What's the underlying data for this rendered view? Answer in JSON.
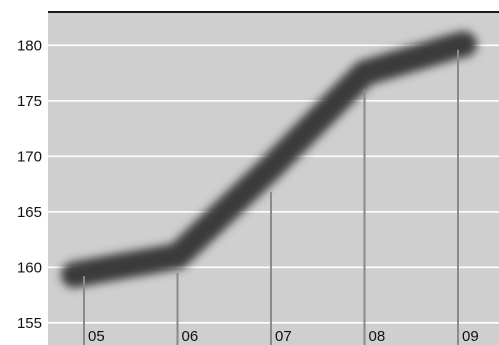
{
  "chart_data": {
    "type": "line",
    "title": "",
    "xlabel": "",
    "ylabel": "",
    "x": [
      "05",
      "06",
      "07",
      "08",
      "09"
    ],
    "series": [
      {
        "values": [
          159.5,
          161.0,
          169.0,
          177.5,
          180.0
        ]
      }
    ],
    "ylim": [
      153,
      183
    ],
    "yticks": [
      155,
      160,
      165,
      170,
      175,
      180
    ],
    "vertical_markers": [
      {
        "x": "05",
        "top": 159.2
      },
      {
        "x": "06",
        "top": 159.5
      },
      {
        "x": "07",
        "top": 166.8
      },
      {
        "x": "08",
        "top": 176.0
      },
      {
        "x": "09",
        "top": 179.6
      }
    ],
    "grid": true,
    "colors": {
      "background": "#cfcfcf",
      "grid": "#ffffff",
      "line": "#3a3a3a",
      "marker": "#8a8a8a",
      "frame_top": "#1a1a1a"
    }
  }
}
